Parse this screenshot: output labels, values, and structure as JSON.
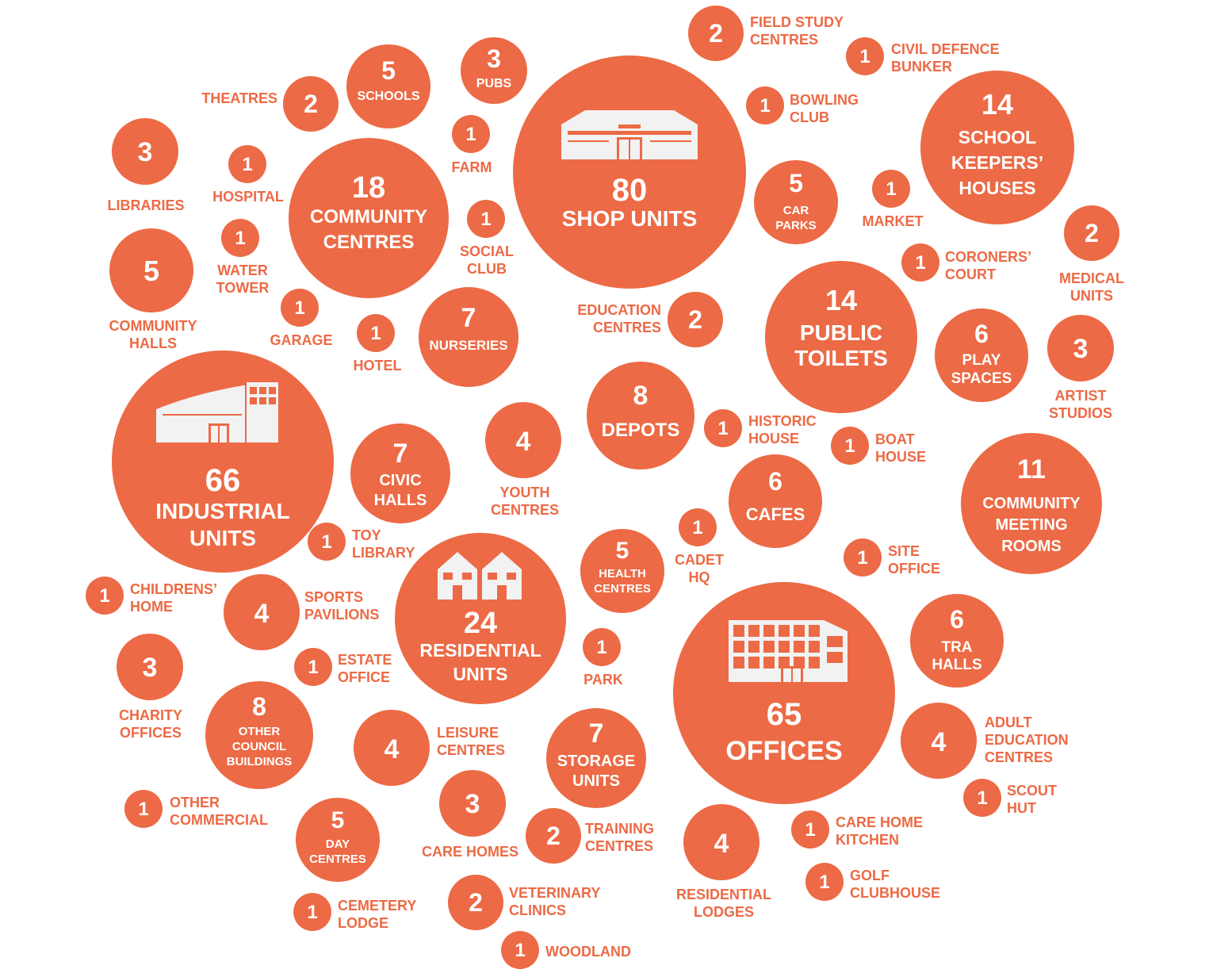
{
  "colors": {
    "bubble": "#ec6a45",
    "background": "#ffffff",
    "icon": "#f2f2f2"
  },
  "chart_data": {
    "type": "bubble",
    "title": "",
    "items": [
      {
        "label": "SHOP UNITS",
        "value": 80,
        "icon": "shop-icon"
      },
      {
        "label": "INDUSTRIAL UNITS",
        "value": 66,
        "icon": "industrial-icon"
      },
      {
        "label": "OFFICES",
        "value": 65,
        "icon": "office-icon"
      },
      {
        "label": "RESIDENTIAL UNITS",
        "value": 24,
        "icon": "houses-icon"
      },
      {
        "label": "COMMUNITY CENTRES",
        "value": 18
      },
      {
        "label": "SCHOOL KEEPERS' HOUSES",
        "value": 14
      },
      {
        "label": "PUBLIC TOILETS",
        "value": 14
      },
      {
        "label": "COMMUNITY MEETING ROOMS",
        "value": 11
      },
      {
        "label": "DEPOTS",
        "value": 8
      },
      {
        "label": "OTHER COUNCIL BUILDINGS",
        "value": 8
      },
      {
        "label": "NURSERIES",
        "value": 7
      },
      {
        "label": "CIVIC HALLS",
        "value": 7
      },
      {
        "label": "STORAGE UNITS",
        "value": 7
      },
      {
        "label": "PLAY SPACES",
        "value": 6
      },
      {
        "label": "CAFES",
        "value": 6
      },
      {
        "label": "TRA HALLS",
        "value": 6
      },
      {
        "label": "SCHOOLS",
        "value": 5
      },
      {
        "label": "CAR PARKS",
        "value": 5
      },
      {
        "label": "COMMUNITY HALLS",
        "value": 5
      },
      {
        "label": "HEALTH CENTRES",
        "value": 5
      },
      {
        "label": "DAY CENTRES",
        "value": 5
      },
      {
        "label": "YOUTH CENTRES",
        "value": 4
      },
      {
        "label": "SPORTS PAVILIONS",
        "value": 4
      },
      {
        "label": "LEISURE CENTRES",
        "value": 4
      },
      {
        "label": "ADULT EDUCATION CENTRES",
        "value": 4
      },
      {
        "label": "RESIDENTIAL LODGES",
        "value": 4
      },
      {
        "label": "PUBS",
        "value": 3
      },
      {
        "label": "LIBRARIES",
        "value": 3
      },
      {
        "label": "ARTIST STUDIOS",
        "value": 3
      },
      {
        "label": "CHARITY OFFICES",
        "value": 3
      },
      {
        "label": "CARE HOMES",
        "value": 3
      },
      {
        "label": "FIELD STUDY CENTRES",
        "value": 2
      },
      {
        "label": "THEATRES",
        "value": 2
      },
      {
        "label": "MEDICAL UNITS",
        "value": 2
      },
      {
        "label": "EDUCATION CENTRES",
        "value": 2
      },
      {
        "label": "TRAINING CENTRES",
        "value": 2
      },
      {
        "label": "VETERINARY CLINICS",
        "value": 2
      },
      {
        "label": "CIVIL DEFENCE BUNKER",
        "value": 1
      },
      {
        "label": "BOWLING CLUB",
        "value": 1
      },
      {
        "label": "FARM",
        "value": 1
      },
      {
        "label": "HOSPITAL",
        "value": 1
      },
      {
        "label": "MARKET",
        "value": 1
      },
      {
        "label": "SOCIAL CLUB",
        "value": 1
      },
      {
        "label": "WATER TOWER",
        "value": 1
      },
      {
        "label": "CORONERS' COURT",
        "value": 1
      },
      {
        "label": "GARAGE",
        "value": 1
      },
      {
        "label": "HOTEL",
        "value": 1
      },
      {
        "label": "HISTORIC HOUSE",
        "value": 1
      },
      {
        "label": "BOAT HOUSE",
        "value": 1
      },
      {
        "label": "CADET HQ",
        "value": 1
      },
      {
        "label": "TOY LIBRARY",
        "value": 1
      },
      {
        "label": "SITE OFFICE",
        "value": 1
      },
      {
        "label": "CHILDRENS' HOME",
        "value": 1
      },
      {
        "label": "ESTATE OFFICE",
        "value": 1
      },
      {
        "label": "PARK",
        "value": 1
      },
      {
        "label": "SCOUT HUT",
        "value": 1
      },
      {
        "label": "OTHER COMMERCIAL",
        "value": 1
      },
      {
        "label": "CARE HOME KITCHEN",
        "value": 1
      },
      {
        "label": "CEMETERY LODGE",
        "value": 1
      },
      {
        "label": "GOLF CLUBHOUSE",
        "value": 1
      },
      {
        "label": "WOODLAND",
        "value": 1
      }
    ]
  }
}
